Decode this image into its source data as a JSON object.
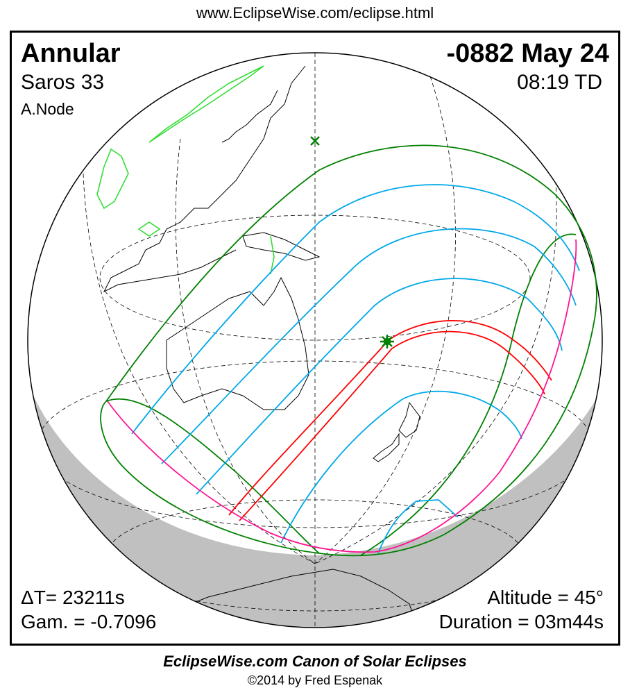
{
  "header": {
    "url": "www.EclipseWise.com/eclipse.html"
  },
  "eclipse": {
    "type": "Annular",
    "saros": "Saros  33",
    "node": "A.Node",
    "date": "-0882 May 24",
    "time": "08:19 TD",
    "delta_t": "ΔT=  23211s",
    "gamma": "Gam. = -0.7096",
    "altitude": "Altitude = 45°",
    "duration": "Duration = 03m44s"
  },
  "footer": {
    "canon": "EclipseWise.com Canon of Solar Eclipses",
    "copyright": "©2014 by Fred Espenak"
  },
  "colors": {
    "penumbra_limits": "#008000",
    "partial_magnitude_lines": "#00a8e8",
    "central_path": "#ff0000",
    "rise_set_limits": "#ff1493",
    "night_shade": "#c0c0c0",
    "ancient_coastline": "#33dd33"
  },
  "markers": {
    "subsolar_point": "x-icon",
    "greatest_eclipse": "star-icon"
  }
}
